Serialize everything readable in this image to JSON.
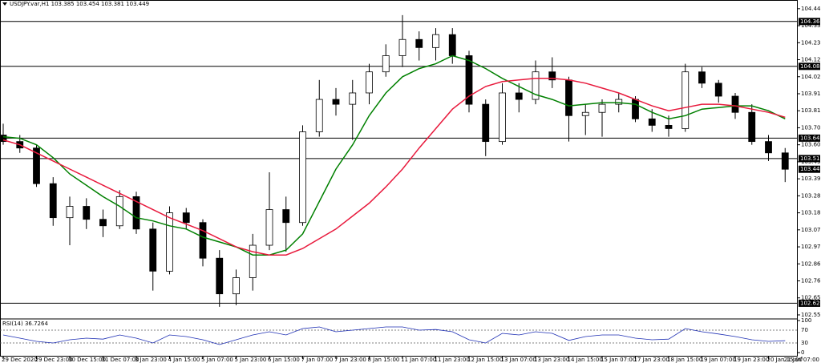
{
  "chart_data": [
    {
      "type": "candlestick",
      "title": "USDJPY.var,H1  103.385 103.454 103.381 103.449",
      "categories": [
        "29 Dec 2020",
        null,
        "29 Dec 23:00",
        null,
        "30 Dec 15:00",
        null,
        "31 Dec 07:00",
        null,
        "3 Jan 23:00",
        null,
        "4 Jan 15:00",
        null,
        "5 Jan 07:00",
        null,
        "5 Jan 23:00",
        null,
        "6 Jan 15:00",
        null,
        "7 Jan 07:00",
        null,
        "7 Jan 23:00",
        null,
        "8 Jan 15:00",
        null,
        "11 Jan 07:00",
        null,
        "11 Jan 23:00",
        null,
        "12 Jan 15:00",
        null,
        "13 Jan 07:00",
        null,
        "13 Jan 23:00",
        null,
        "14 Jan 15:00",
        null,
        "15 Jan 07:00",
        null,
        "17 Jan 23:00",
        null,
        "18 Jan 15:00",
        null,
        "19 Jan 07:00",
        null,
        "19 Jan 23:00",
        null,
        "20 Jan 15:00",
        null,
        "21 Jan 07:00"
      ],
      "open": [
        103.66,
        103.62,
        103.58,
        103.36,
        103.15,
        103.22,
        103.14,
        103.1,
        103.28,
        103.08,
        102.82,
        103.18,
        103.12,
        102.9,
        102.68,
        102.78,
        102.98,
        103.2,
        103.12,
        103.68,
        103.88,
        103.85,
        103.92,
        104.05,
        104.15,
        104.25,
        104.2,
        104.28,
        104.15,
        103.85,
        103.62,
        103.92,
        103.88,
        104.05,
        104.0,
        103.78,
        103.8,
        103.85,
        103.88,
        103.76,
        103.72,
        103.7,
        104.05,
        103.98,
        103.9,
        103.8,
        103.62,
        103.55,
        null
      ],
      "high": [
        103.73,
        103.66,
        103.6,
        103.4,
        103.28,
        103.27,
        103.2,
        103.32,
        103.31,
        103.12,
        103.22,
        103.21,
        103.14,
        102.95,
        102.83,
        103.05,
        103.43,
        103.28,
        103.72,
        104.0,
        103.95,
        104.0,
        104.1,
        104.22,
        104.4,
        104.3,
        104.32,
        104.32,
        104.18,
        103.88,
        103.98,
        103.98,
        104.12,
        104.14,
        104.02,
        103.85,
        103.88,
        103.92,
        103.9,
        103.82,
        103.78,
        104.1,
        104.08,
        104.0,
        103.92,
        103.85,
        103.66,
        103.58,
        null
      ],
      "low": [
        103.6,
        103.55,
        103.34,
        103.1,
        102.98,
        103.08,
        103.03,
        103.08,
        103.05,
        102.7,
        102.8,
        103.08,
        102.85,
        102.6,
        102.61,
        102.7,
        102.95,
        102.94,
        103.1,
        103.65,
        103.78,
        103.63,
        103.85,
        104.02,
        104.08,
        104.12,
        104.12,
        104.1,
        103.8,
        103.53,
        103.6,
        103.8,
        103.85,
        103.95,
        103.62,
        103.66,
        103.65,
        103.8,
        103.74,
        103.68,
        103.65,
        103.68,
        103.95,
        103.86,
        103.76,
        103.6,
        103.5,
        103.37,
        null
      ],
      "close": [
        103.62,
        103.58,
        103.36,
        103.15,
        103.22,
        103.14,
        103.1,
        103.28,
        103.08,
        102.82,
        103.18,
        103.12,
        102.9,
        102.68,
        102.78,
        102.98,
        103.2,
        103.12,
        103.68,
        103.88,
        103.85,
        103.92,
        104.05,
        104.15,
        104.25,
        104.2,
        104.28,
        104.15,
        103.85,
        103.62,
        103.92,
        103.88,
        104.05,
        104.0,
        103.78,
        103.8,
        103.85,
        103.88,
        103.76,
        103.72,
        103.7,
        104.05,
        103.98,
        103.9,
        103.8,
        103.62,
        103.55,
        103.449,
        null
      ],
      "series": [
        {
          "color": "#008000",
          "values": [
            103.65,
            103.64,
            103.6,
            103.52,
            103.42,
            103.35,
            103.28,
            103.22,
            103.15,
            103.13,
            103.1,
            103.08,
            103.03,
            103.0,
            102.97,
            102.92,
            102.92,
            102.95,
            103.05,
            103.25,
            103.45,
            103.6,
            103.78,
            103.92,
            104.02,
            104.07,
            104.1,
            104.15,
            104.12,
            104.07,
            104.01,
            103.96,
            103.91,
            103.88,
            103.84,
            103.85,
            103.86,
            103.86,
            103.85,
            103.8,
            103.76,
            103.78,
            103.82,
            103.83,
            103.84,
            103.84,
            103.81,
            103.76,
            null
          ]
        },
        {
          "color": "#e8193c",
          "values": [
            103.63,
            103.6,
            103.55,
            103.5,
            103.45,
            103.4,
            103.35,
            103.3,
            103.25,
            103.2,
            103.15,
            103.11,
            103.07,
            103.02,
            102.97,
            102.94,
            102.92,
            102.92,
            102.96,
            103.02,
            103.08,
            103.16,
            103.24,
            103.34,
            103.45,
            103.58,
            103.7,
            103.82,
            103.9,
            103.96,
            103.99,
            104.0,
            104.01,
            104.01,
            104.0,
            103.98,
            103.95,
            103.92,
            103.88,
            103.84,
            103.81,
            103.83,
            103.85,
            103.85,
            103.84,
            103.82,
            103.8,
            103.77,
            null
          ]
        }
      ],
      "levels": [
        104.361,
        104.084,
        103.641,
        103.515,
        102.622
      ],
      "ylim": [
        102.54,
        104.454
      ],
      "yticks": [
        {
          "value": 104.44,
          "label": "104.440"
        },
        104.335,
        {
          "value": 104.23,
          "label": "104.230"
        },
        104.125,
        {
          "value": 104.02,
          "label": "104.020"
        },
        103.915,
        {
          "value": 103.81,
          "label": "103.810"
        },
        103.705,
        {
          "value": 103.6,
          "label": "103.600"
        },
        103.495,
        {
          "value": 103.39,
          "label": "103.390"
        },
        103.285,
        {
          "value": 103.18,
          "label": "103.180"
        },
        103.075,
        {
          "value": 102.97,
          "label": "102.970"
        },
        102.865,
        {
          "value": 102.76,
          "label": "102.760"
        },
        102.655,
        {
          "value": 102.55,
          "label": "102.550"
        }
      ]
    },
    {
      "type": "line",
      "title": "RSI(14) 36.7264",
      "ylim": [
        0,
        100
      ],
      "yticks": [
        100,
        70,
        30,
        0
      ],
      "series": [
        {
          "color": "#1e2fb4",
          "values": [
            55,
            45,
            35,
            30,
            40,
            45,
            42,
            55,
            45,
            30,
            55,
            50,
            40,
            25,
            40,
            55,
            65,
            55,
            75,
            80,
            65,
            70,
            75,
            80,
            80,
            70,
            72,
            65,
            40,
            30,
            60,
            55,
            65,
            60,
            38,
            50,
            55,
            55,
            45,
            40,
            42,
            75,
            65,
            58,
            50,
            40,
            35,
            37,
            null
          ]
        }
      ]
    }
  ]
}
